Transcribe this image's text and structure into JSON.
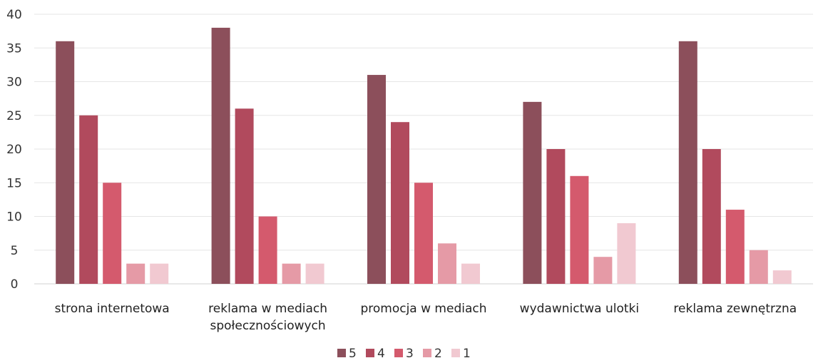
{
  "chart_data": {
    "type": "bar",
    "title": "",
    "xlabel": "",
    "ylabel": "",
    "ylim": [
      0,
      40
    ],
    "yticks": [
      0,
      5,
      10,
      15,
      20,
      25,
      30,
      35,
      40
    ],
    "grid": true,
    "legend_position": "bottom",
    "categories": [
      [
        "strona internetowa"
      ],
      [
        "reklama w mediach",
        "społecznościowych"
      ],
      [
        "promocja w mediach"
      ],
      [
        "wydawnictwa ulotki"
      ],
      [
        "reklama zewnętrzna"
      ]
    ],
    "series": [
      {
        "name": "5",
        "color": "#8c4f5b",
        "values": [
          36,
          38,
          31,
          27,
          36
        ]
      },
      {
        "name": "4",
        "color": "#b14a5d",
        "values": [
          25,
          26,
          24,
          20,
          20
        ]
      },
      {
        "name": "3",
        "color": "#d45a6d",
        "values": [
          15,
          10,
          15,
          16,
          11
        ]
      },
      {
        "name": "2",
        "color": "#e59aa6",
        "values": [
          3,
          3,
          6,
          4,
          5
        ]
      },
      {
        "name": "1",
        "color": "#f1c9d1",
        "values": [
          3,
          3,
          3,
          9,
          2
        ]
      }
    ]
  }
}
